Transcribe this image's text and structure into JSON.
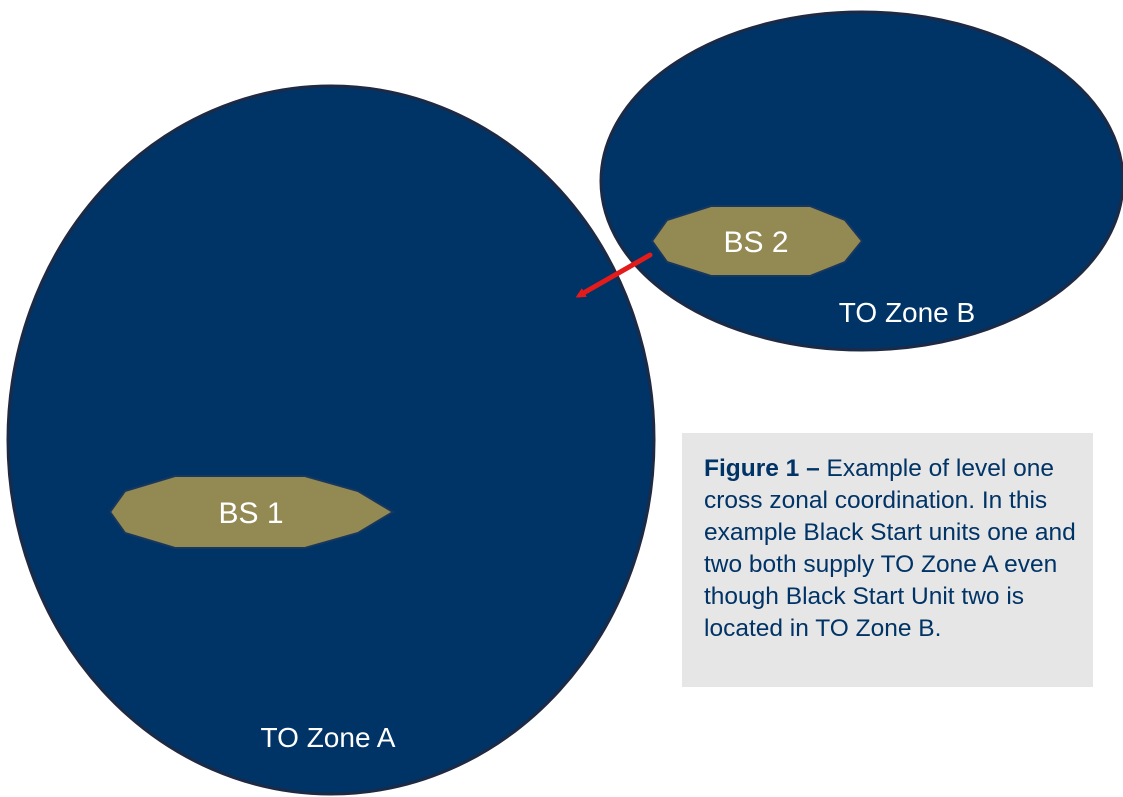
{
  "zones": {
    "a": {
      "label": "TO Zone A"
    },
    "b": {
      "label": "TO Zone B"
    }
  },
  "units": {
    "bs1": {
      "label": "BS 1"
    },
    "bs2": {
      "label": "BS 2"
    }
  },
  "caption": {
    "figure_label": "Figure 1 –",
    "text": " Example of level one cross zonal coordination.  In this example Black Start units one and two both supply TO Zone A even though Black Start Unit two is located in TO Zone B."
  },
  "colors": {
    "zone_fill": "#003366",
    "zone_stroke": "#1c2a45",
    "unit_fill": "#938953",
    "unit_stroke": "#17375e",
    "arrow": "#e41b1b",
    "caption_bg": "#e6e6e6",
    "caption_text": "#003366"
  }
}
